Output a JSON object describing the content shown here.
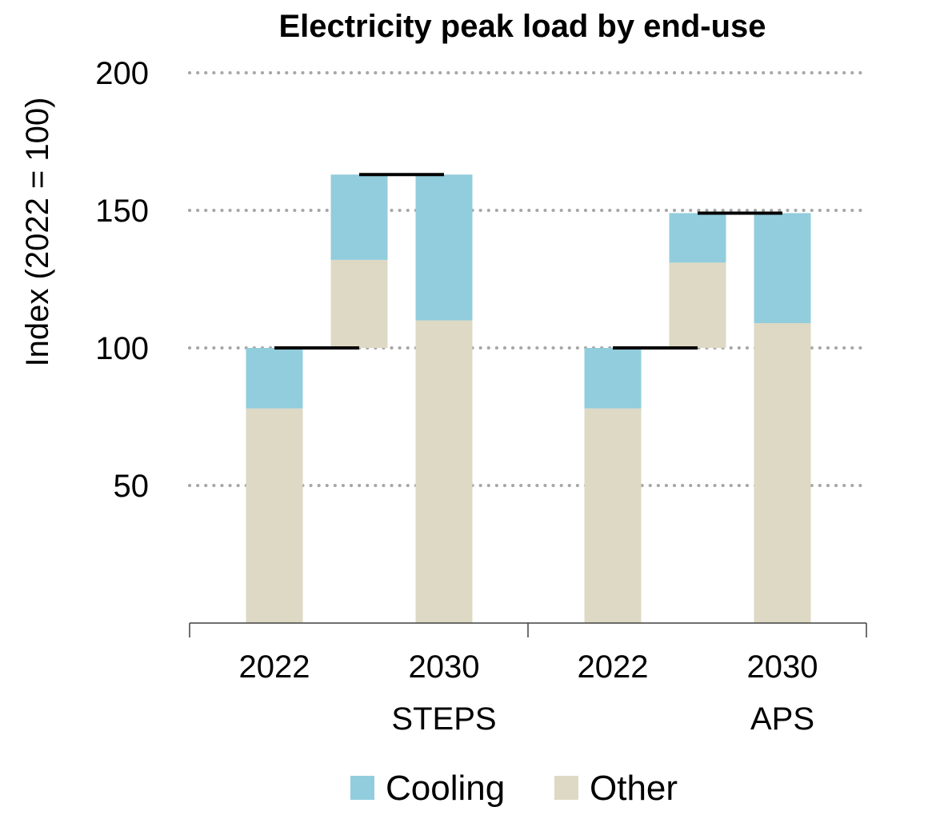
{
  "chart_data": {
    "type": "bar",
    "title": "Electricity peak load by end-use",
    "ylabel": "Index (2022 = 100)",
    "xlabel": "",
    "ylim": [
      0,
      200
    ],
    "yticks": [
      50,
      100,
      150,
      200
    ],
    "grid": true,
    "grid_style": "dotted",
    "legend_position": "bottom",
    "groups": [
      {
        "label": "STEPS",
        "categories": [
          "2022",
          "2030"
        ]
      },
      {
        "label": "APS",
        "categories": [
          "2022",
          "2030"
        ]
      }
    ],
    "series": [
      {
        "name": "Other",
        "color": "#ded9c4",
        "bars": [
          {
            "group": "STEPS",
            "category": "2022",
            "value": 78
          },
          {
            "group": "STEPS",
            "category": "2030",
            "value": 110
          },
          {
            "group": "APS",
            "category": "2022",
            "value": 78
          },
          {
            "group": "APS",
            "category": "2030",
            "value": 109
          }
        ]
      },
      {
        "name": "Cooling",
        "color": "#92cddd",
        "bars": [
          {
            "group": "STEPS",
            "category": "2022",
            "value": 22
          },
          {
            "group": "STEPS",
            "category": "2030",
            "value": 53
          },
          {
            "group": "APS",
            "category": "2022",
            "value": 22
          },
          {
            "group": "APS",
            "category": "2030",
            "value": 40
          }
        ]
      }
    ],
    "waterfall_steps": [
      {
        "group": "STEPS",
        "other_from": 100,
        "other_to": 132,
        "cooling_from": 132,
        "cooling_to": 163
      },
      {
        "group": "APS",
        "other_from": 100,
        "other_to": 131,
        "cooling_from": 131,
        "cooling_to": 149
      }
    ],
    "level_lines": [
      {
        "group": "STEPS",
        "value": 100
      },
      {
        "group": "STEPS",
        "value": 163
      },
      {
        "group": "APS",
        "value": 100
      },
      {
        "group": "APS",
        "value": 149
      }
    ],
    "legend": [
      {
        "name": "Cooling",
        "color": "#92cddd"
      },
      {
        "name": "Other",
        "color": "#ded9c4"
      }
    ]
  }
}
